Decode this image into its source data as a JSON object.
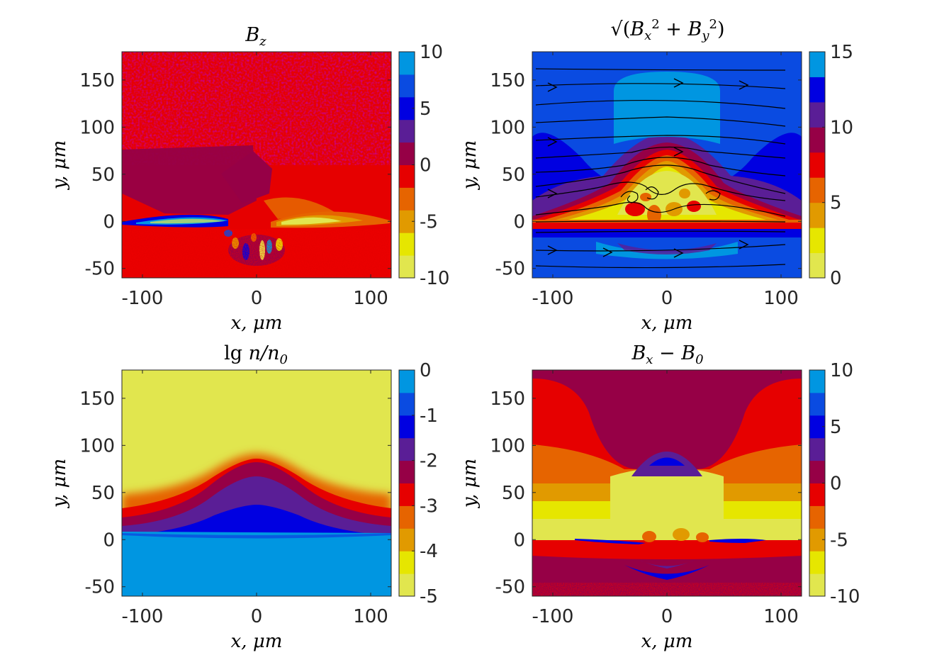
{
  "chart_data": [
    {
      "type": "heatmap",
      "id": "bz",
      "title": "B_z",
      "xlabel": "x, μm",
      "ylabel": "y, μm",
      "xlim": [
        -118,
        118
      ],
      "ylim": [
        -60,
        180
      ],
      "xticks": [
        -100,
        0,
        100
      ],
      "xtick_labels": [
        "-100",
        "0",
        "100"
      ],
      "yticks": [
        -50,
        0,
        50,
        100,
        150
      ],
      "ytick_labels": [
        "-50",
        "0",
        "50",
        "100",
        "150"
      ],
      "colorbar": {
        "range": [
          -10,
          10
        ],
        "levels": 10,
        "ticks": [
          10,
          5,
          0,
          -5,
          -10
        ],
        "tick_labels": [
          "10",
          "5",
          "0",
          "-5",
          "-10"
        ]
      },
      "features": [
        {
          "x": [
            -70,
            -10
          ],
          "y": [
            60,
            15
          ],
          "value": 1
        },
        {
          "x": [
            -120,
            -5
          ],
          "y": [
            5,
            -5
          ],
          "value": 6
        },
        {
          "x": [
            20,
            120
          ],
          "y": [
            5,
            -5
          ],
          "value": -8
        }
      ]
    },
    {
      "type": "heatmap",
      "id": "bperp",
      "title": "sqrt(B_x^2 + B_y^2)",
      "xlabel": "x, μm",
      "ylabel": "y, μm",
      "xlim": [
        -118,
        118
      ],
      "ylim": [
        -60,
        180
      ],
      "xticks": [
        -100,
        0,
        100
      ],
      "xtick_labels": [
        "-100",
        "0",
        "100"
      ],
      "yticks": [
        -50,
        0,
        50,
        100,
        150
      ],
      "ytick_labels": [
        "-50",
        "0",
        "50",
        "100",
        "150"
      ],
      "colorbar": {
        "range": [
          0,
          15
        ],
        "levels": 9,
        "ticks": [
          15,
          10,
          5,
          0
        ],
        "tick_labels": [
          "15",
          "10",
          "5",
          "0"
        ]
      },
      "streamlines": true,
      "features": [
        {
          "x": [
            -45,
            45
          ],
          "y": [
            75,
            160
          ],
          "value": 14
        },
        {
          "x": [
            -110,
            110
          ],
          "y": [
            0,
            80
          ],
          "value": 4
        }
      ]
    },
    {
      "type": "heatmap",
      "id": "density",
      "title": "lg n/n_0",
      "xlabel": "x, μm",
      "ylabel": "y, μm",
      "xlim": [
        -118,
        118
      ],
      "ylim": [
        -60,
        180
      ],
      "xticks": [
        -100,
        0,
        100
      ],
      "xtick_labels": [
        "-100",
        "0",
        "100"
      ],
      "yticks": [
        -50,
        0,
        50,
        100,
        150
      ],
      "ytick_labels": [
        "-50",
        "0",
        "50",
        "100",
        "150"
      ],
      "colorbar": {
        "range": [
          -5,
          0
        ],
        "levels": 10,
        "ticks": [
          0,
          -1,
          -2,
          -3,
          -4,
          -5
        ],
        "tick_labels": [
          "0",
          "-1",
          "-2",
          "-3",
          "-4",
          "-5"
        ]
      },
      "features": [
        {
          "x": [
            -118,
            118
          ],
          "y": [
            -60,
            5
          ],
          "value": -0.2
        },
        {
          "x": [
            -118,
            118
          ],
          "y": [
            5,
            82
          ],
          "value": -2.5
        },
        {
          "x": [
            -118,
            118
          ],
          "y": [
            82,
            180
          ],
          "value": -4.8
        }
      ]
    },
    {
      "type": "heatmap",
      "id": "bx",
      "title": "B_x − B_0",
      "xlabel": "x, μm",
      "ylabel": "y, μm",
      "xlim": [
        -118,
        118
      ],
      "ylim": [
        -60,
        180
      ],
      "xticks": [
        -100,
        0,
        100
      ],
      "xtick_labels": [
        "-100",
        "0",
        "100"
      ],
      "yticks": [
        -50,
        0,
        50,
        100,
        150
      ],
      "ytick_labels": [
        "-50",
        "0",
        "50",
        "100",
        "150"
      ],
      "colorbar": {
        "range": [
          -10,
          10
        ],
        "levels": 10,
        "ticks": [
          10,
          5,
          0,
          -5,
          -10
        ],
        "tick_labels": [
          "10",
          "5",
          "0",
          "-5",
          "-10"
        ]
      },
      "features": [
        {
          "x": [
            -118,
            118
          ],
          "y": [
            0,
            80
          ],
          "value": -9
        },
        {
          "x": [
            -20,
            20
          ],
          "y": [
            80,
            110
          ],
          "value": 4
        },
        {
          "x": [
            -118,
            118
          ],
          "y": [
            -60,
            0
          ],
          "value": 1
        }
      ]
    }
  ],
  "colors": {
    "palette10": [
      "#e1e64e",
      "#e6e600",
      "#e19a00",
      "#e66400",
      "#e60000",
      "#960046",
      "#5a1e96",
      "#0000e1",
      "#0a4be1",
      "#0096e1"
    ],
    "palette9": [
      "#e1e64e",
      "#e6e600",
      "#e19a00",
      "#e66400",
      "#e60000",
      "#960046",
      "#5a1e96",
      "#0000e1",
      "#0096e1"
    ]
  }
}
